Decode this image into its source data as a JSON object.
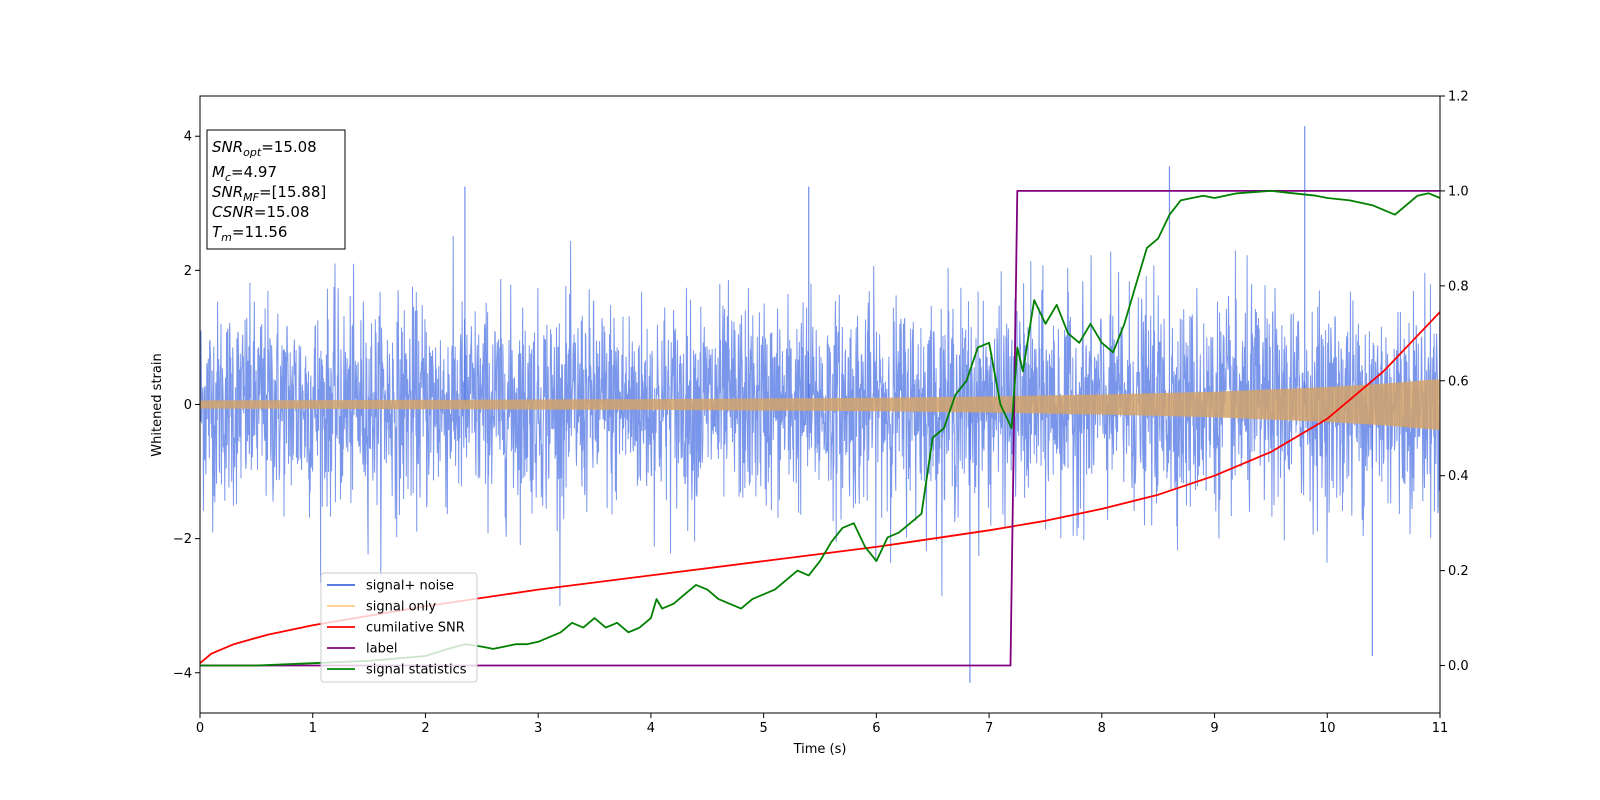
{
  "chart_data": {
    "type": "line",
    "xlabel": "Time (s)",
    "ylabel": "Whitened strain",
    "xlim": [
      0,
      11
    ],
    "ylim": [
      -4.6,
      4.6
    ],
    "y2lim": [
      -0.1,
      1.2
    ],
    "xticks": [
      "0",
      "1",
      "2",
      "3",
      "4",
      "5",
      "6",
      "7",
      "8",
      "9",
      "10",
      "11"
    ],
    "yticks": [
      "−4",
      "−2",
      "0",
      "2",
      "4"
    ],
    "y2ticks": [
      "0.0",
      "0.2",
      "0.4",
      "0.6",
      "0.8",
      "1.0",
      "1.2"
    ],
    "grid": false,
    "legend_position": "lower-left",
    "info_box": {
      "lines": [
        {
          "sym": "SNR",
          "sub": "opt",
          "val": "=15.08"
        },
        {
          "sym": "M",
          "sub": "c",
          "val": "=4.97"
        },
        {
          "sym": "SNR",
          "sub": "MF",
          "val": "=[15.88]"
        },
        {
          "sym": "CSNR",
          "sub": "",
          "val": "=15.08"
        },
        {
          "sym": "T",
          "sub": "m",
          "val": "=11.56"
        }
      ]
    },
    "series": [
      {
        "name": "signal+ noise",
        "color": "#4169e1",
        "axis": "left",
        "description_values": {
          "noise_std": 0.75,
          "duration": 11,
          "spike_peaks": [
            [
              6.83,
              -4.15
            ],
            [
              9.8,
              4.15
            ],
            [
              8.6,
              3.55
            ],
            [
              10.4,
              -3.75
            ],
            [
              5.4,
              3.25
            ],
            [
              2.35,
              3.25
            ]
          ]
        }
      },
      {
        "name": "signal only",
        "color": "#ffa500",
        "axis": "left",
        "envelope": {
          "x": [
            0,
            2,
            4,
            6,
            7,
            8,
            9,
            10,
            10.5,
            11
          ],
          "amp": [
            0.06,
            0.07,
            0.08,
            0.1,
            0.12,
            0.15,
            0.19,
            0.26,
            0.31,
            0.38
          ]
        }
      },
      {
        "name": "cumilative SNR",
        "color": "#ff0000",
        "axis": "right",
        "x": [
          0,
          0.1,
          0.3,
          0.6,
          1,
          2,
          3,
          4,
          5,
          6,
          7,
          7.5,
          8,
          8.5,
          9,
          9.5,
          10,
          10.5,
          11
        ],
        "y": [
          0.005,
          0.025,
          0.045,
          0.065,
          0.085,
          0.125,
          0.16,
          0.19,
          0.22,
          0.25,
          0.285,
          0.305,
          0.33,
          0.36,
          0.4,
          0.45,
          0.52,
          0.62,
          0.745
        ]
      },
      {
        "name": "label",
        "color": "#800080",
        "axis": "right",
        "x": [
          0,
          7.19,
          7.25,
          11
        ],
        "y": [
          0,
          0,
          1,
          1
        ]
      },
      {
        "name": "signal statistics",
        "color": "#008000",
        "axis": "right",
        "x": [
          0,
          0.5,
          1,
          1.5,
          2,
          2.2,
          2.35,
          2.5,
          2.6,
          2.7,
          2.8,
          2.9,
          3.0,
          3.1,
          3.2,
          3.3,
          3.4,
          3.5,
          3.6,
          3.7,
          3.8,
          3.9,
          4.0,
          4.05,
          4.1,
          4.2,
          4.3,
          4.4,
          4.5,
          4.6,
          4.7,
          4.8,
          4.9,
          5.0,
          5.1,
          5.2,
          5.3,
          5.4,
          5.5,
          5.6,
          5.7,
          5.8,
          5.9,
          6.0,
          6.1,
          6.2,
          6.3,
          6.4,
          6.5,
          6.6,
          6.7,
          6.8,
          6.9,
          7.0,
          7.1,
          7.2,
          7.25,
          7.3,
          7.4,
          7.5,
          7.6,
          7.7,
          7.8,
          7.9,
          8.0,
          8.1,
          8.2,
          8.3,
          8.4,
          8.5,
          8.6,
          8.7,
          8.8,
          8.9,
          9.0,
          9.2,
          9.5,
          9.7,
          9.9,
          10.0,
          10.2,
          10.4,
          10.6,
          10.8,
          10.9,
          11.0
        ],
        "y": [
          0.0,
          0.0,
          0.005,
          0.01,
          0.02,
          0.035,
          0.045,
          0.04,
          0.035,
          0.04,
          0.045,
          0.045,
          0.05,
          0.06,
          0.07,
          0.09,
          0.08,
          0.1,
          0.08,
          0.09,
          0.07,
          0.08,
          0.1,
          0.14,
          0.12,
          0.13,
          0.15,
          0.17,
          0.16,
          0.14,
          0.13,
          0.12,
          0.14,
          0.15,
          0.16,
          0.18,
          0.2,
          0.19,
          0.22,
          0.26,
          0.29,
          0.3,
          0.25,
          0.22,
          0.27,
          0.28,
          0.3,
          0.32,
          0.48,
          0.5,
          0.57,
          0.6,
          0.67,
          0.68,
          0.55,
          0.5,
          0.67,
          0.62,
          0.77,
          0.72,
          0.76,
          0.7,
          0.68,
          0.72,
          0.68,
          0.66,
          0.72,
          0.8,
          0.88,
          0.9,
          0.95,
          0.98,
          0.985,
          0.99,
          0.985,
          0.995,
          1.0,
          0.995,
          0.99,
          0.985,
          0.98,
          0.97,
          0.95,
          0.99,
          0.995,
          0.985
        ]
      }
    ]
  }
}
